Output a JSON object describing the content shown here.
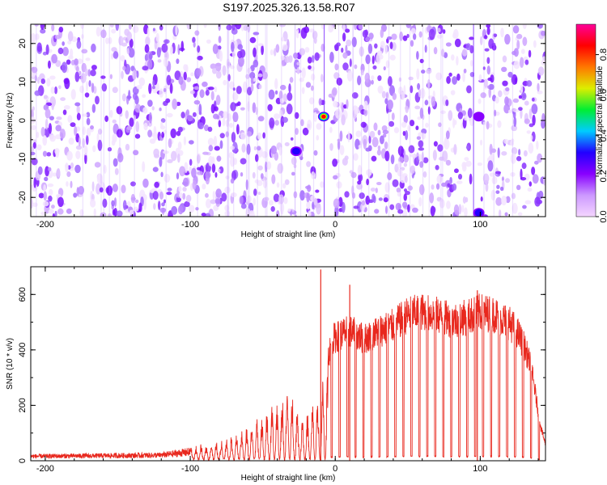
{
  "title": "S197.2025.326.13.58.R07",
  "colors": {
    "background": "#ffffff",
    "frame": "#000000",
    "snr_line": "#e8281e",
    "colorbar_stops": [
      "#f5d6ff",
      "#cc99ff",
      "#8800ff",
      "#2200ff",
      "#00ccff",
      "#00ee33",
      "#ddee00",
      "#ff7700",
      "#ff0000",
      "#ff0099"
    ]
  },
  "chart_data": [
    {
      "type": "heatmap",
      "name": "spectrogram",
      "xlabel": "Height of straight line (km)",
      "ylabel": "Frequency (Hz)",
      "xlim": [
        -210,
        145
      ],
      "ylim": [
        -25,
        25
      ],
      "xticks": [
        "-200",
        "-100",
        "0",
        "100"
      ],
      "yticks": [
        "-20",
        "-10",
        "0",
        "10",
        "20"
      ],
      "value_range": [
        0,
        1
      ],
      "features": [
        {
          "x": -8,
          "y": 1,
          "amplitude": 0.85
        },
        {
          "x": 99,
          "y": 1,
          "amplitude": 0.25
        },
        {
          "x": -27,
          "y": -8,
          "amplitude": 0.3
        },
        {
          "x": 99,
          "y": -24,
          "amplitude": 0.3
        }
      ],
      "gaps_km": [
        -6,
        97
      ],
      "colorbar": {
        "label": "Normalized spectral amplitude",
        "ticks": [
          "0.0",
          "0.2",
          "0.4",
          "0.6",
          "0.8"
        ],
        "range": [
          0,
          0.95
        ]
      }
    },
    {
      "type": "line",
      "name": "snr",
      "xlabel": "Height of straight line (km)",
      "ylabel": "SNR (10 * v/v)",
      "xlim": [
        -210,
        145
      ],
      "ylim": [
        0,
        700
      ],
      "xticks": [
        "-200",
        "-100",
        "0",
        "100"
      ],
      "yticks": [
        "0",
        "200",
        "400",
        "600"
      ],
      "envelope": {
        "x": [
          -210,
          -120,
          -100,
          -80,
          -70,
          -60,
          -50,
          -40,
          -35,
          -30,
          -25,
          -20,
          -10,
          -5,
          -2,
          5,
          10,
          20,
          30,
          40,
          50,
          60,
          70,
          80,
          90,
          100,
          110,
          120,
          125,
          130,
          135,
          138,
          140,
          142,
          144,
          145
        ],
        "y": [
          20,
          25,
          40,
          60,
          80,
          110,
          150,
          200,
          240,
          230,
          180,
          150,
          250,
          380,
          450,
          470,
          480,
          450,
          480,
          500,
          540,
          550,
          540,
          520,
          530,
          550,
          540,
          510,
          480,
          430,
          350,
          250,
          180,
          120,
          80,
          60
        ]
      },
      "spikes": [
        {
          "x": -10,
          "y": 690
        },
        {
          "x": 10,
          "y": 635
        },
        {
          "x": 98,
          "y": 615
        }
      ]
    }
  ]
}
